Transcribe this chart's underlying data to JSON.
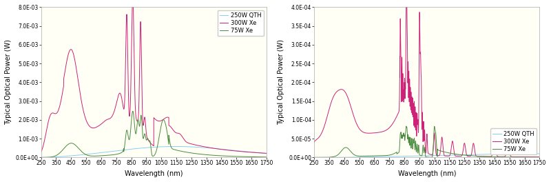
{
  "background_color": "#fffff5",
  "fig_background": "#ffffff",
  "xlabel": "Wavelength (nm)",
  "ylabel": "Typical Optical Power (W)",
  "xlim": [
    250,
    1750
  ],
  "x_ticks": [
    250,
    350,
    450,
    550,
    650,
    750,
    850,
    950,
    1050,
    1150,
    1250,
    1350,
    1450,
    1550,
    1650,
    1750
  ],
  "left_ylim": [
    0,
    0.008
  ],
  "left_yticks": [
    0,
    0.001,
    0.002,
    0.003,
    0.004,
    0.005,
    0.006,
    0.007,
    0.008
  ],
  "left_ytick_labels": [
    "0.0E+00",
    "1.0E-03",
    "2.0E-03",
    "3.0E-03",
    "4.0E-03",
    "5.0E-03",
    "6.0E-03",
    "7.0E-03",
    "8.0E-03"
  ],
  "right_ylim": [
    0,
    0.0004
  ],
  "right_yticks": [
    0,
    5e-05,
    0.0001,
    0.00015,
    0.0002,
    0.00025,
    0.0003,
    0.00035,
    0.0004
  ],
  "right_ytick_labels": [
    "0.0E+00",
    "5.0E-05",
    "1.0E-04",
    "1.5E-04",
    "2.0E-04",
    "2.5E-04",
    "3.0E-04",
    "3.5E-04",
    "4.0E-04"
  ],
  "legend_labels_left": [
    "250W QTH",
    "300W Xe",
    "75W Xe"
  ],
  "legend_labels_right": [
    "250W QTH",
    "300W Xe",
    "75W Xe"
  ],
  "color_qth": "#89cff0",
  "color_xe300": "#cc2277",
  "color_xe75": "#4a8b3f",
  "line_width": 0.7,
  "tick_fontsize": 5.5,
  "label_fontsize": 7,
  "legend_fontsize": 6
}
